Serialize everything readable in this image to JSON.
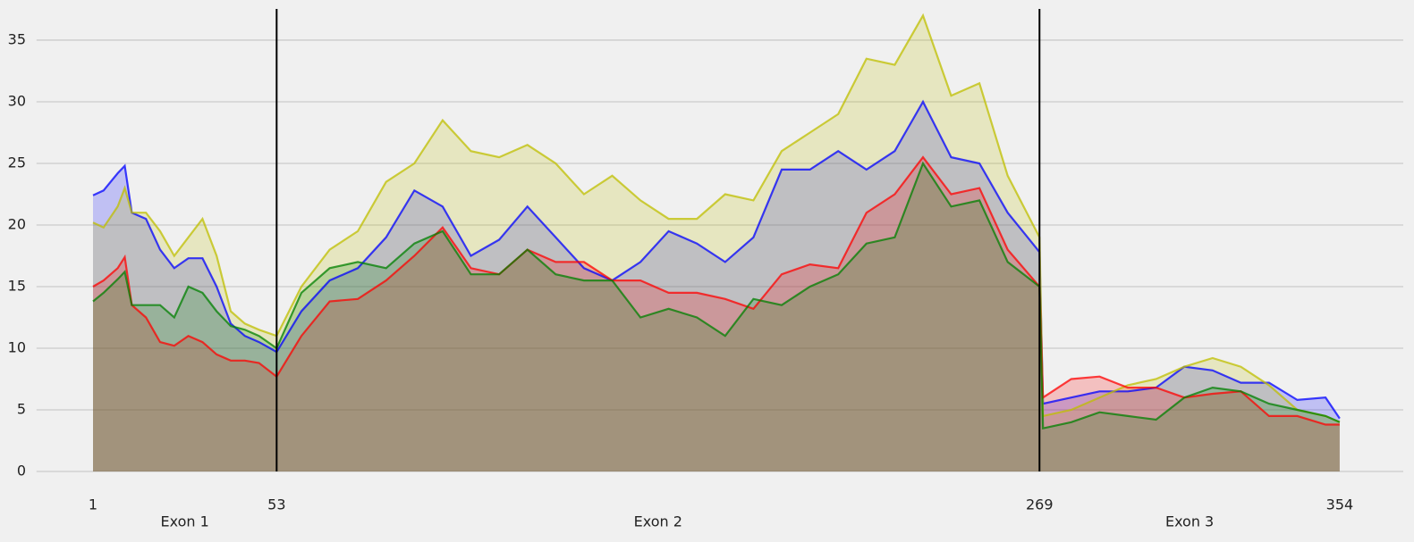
{
  "chart_data": {
    "type": "area",
    "x": [
      1,
      4,
      8,
      10,
      12,
      16,
      20,
      24,
      28,
      32,
      36,
      40,
      44,
      48,
      53,
      60,
      68,
      76,
      84,
      92,
      100,
      108,
      116,
      124,
      132,
      140,
      148,
      156,
      164,
      172,
      180,
      188,
      196,
      204,
      212,
      220,
      228,
      236,
      244,
      252,
      260,
      269,
      270,
      278,
      286,
      294,
      302,
      310,
      318,
      326,
      334,
      342,
      350,
      354
    ],
    "series": [
      {
        "color": "#0000ff",
        "values": [
          22.4,
          22.8,
          24.2,
          24.8,
          21,
          20.5,
          18,
          16.5,
          17.3,
          17.3,
          15,
          12,
          11,
          10.5,
          9.7,
          13,
          15.5,
          16.5,
          19,
          22.8,
          21.5,
          17.5,
          18.8,
          21.5,
          19,
          16.5,
          15.5,
          17,
          19.5,
          18.5,
          17,
          19,
          24.5,
          24.5,
          26,
          24.5,
          26,
          30,
          25.5,
          25,
          21,
          17.8,
          5.5,
          6,
          6.5,
          6.5,
          6.8,
          8.5,
          8.2,
          7.2,
          7.2,
          5.8,
          6,
          4.3
        ]
      },
      {
        "color": "#bfbf00",
        "values": [
          20.2,
          19.8,
          21.5,
          23,
          21,
          21,
          19.5,
          17.5,
          19,
          20.5,
          17.5,
          13,
          12,
          11.5,
          11,
          15,
          18,
          19.5,
          23.5,
          25,
          28.5,
          26,
          25.5,
          26.5,
          25,
          22.5,
          24,
          22,
          20.5,
          20.5,
          22.5,
          22,
          26,
          27.5,
          29,
          33.5,
          33,
          37,
          30.5,
          31.5,
          24,
          19,
          4.5,
          5,
          6,
          7,
          7.5,
          8.5,
          9.2,
          8.5,
          7,
          5,
          4.5,
          4
        ]
      },
      {
        "color": "#ff0000",
        "values": [
          15,
          15.5,
          16.5,
          17.4,
          13.5,
          12.5,
          10.5,
          10.2,
          11,
          10.5,
          9.5,
          9,
          9,
          8.8,
          7.7,
          11,
          13.8,
          14,
          15.5,
          17.5,
          19.8,
          16.5,
          16,
          18,
          17,
          17,
          15.5,
          15.5,
          14.5,
          14.5,
          14,
          13.2,
          16,
          16.8,
          16.5,
          21,
          22.5,
          25.5,
          22.5,
          23,
          18,
          15,
          6,
          7.5,
          7.7,
          6.8,
          6.8,
          6,
          6.3,
          6.5,
          4.5,
          4.5,
          3.8,
          3.8
        ]
      },
      {
        "color": "#008000",
        "values": [
          13.8,
          14.5,
          15.6,
          16.2,
          13.5,
          13.5,
          13.5,
          12.5,
          15,
          14.5,
          13,
          11.8,
          11.5,
          11,
          10,
          14.5,
          16.5,
          17,
          16.5,
          18.5,
          19.5,
          16,
          16,
          18,
          16,
          15.5,
          15.5,
          12.5,
          13.2,
          12.5,
          11,
          14,
          13.5,
          15,
          16,
          18.5,
          19,
          25,
          21.5,
          22,
          17,
          15,
          3.5,
          4,
          4.8,
          4.5,
          4.2,
          6,
          6.8,
          6.5,
          5.5,
          5,
          4.5,
          4
        ]
      }
    ],
    "xlim": [
      -15,
      372
    ],
    "xticks": [
      1,
      53,
      269,
      354
    ],
    "ylim": [
      -0.9,
      37.7
    ],
    "yticks": [
      0,
      5,
      10,
      15,
      20,
      25,
      30,
      35
    ],
    "vlines": [
      53,
      269
    ],
    "regions": [
      "Exon 1",
      "Exon 2",
      "Exon 3"
    ],
    "grid": true
  }
}
